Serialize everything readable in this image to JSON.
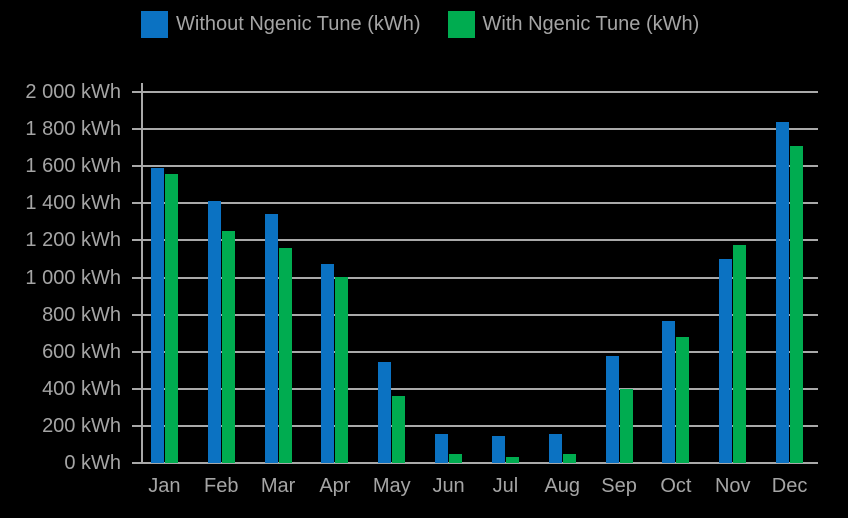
{
  "legend": {
    "items": [
      {
        "label": "Without Ngenic Tune (kWh)",
        "swatch": "blue-square"
      },
      {
        "label": "With Ngenic Tune (kWh)",
        "swatch": "green-square"
      }
    ]
  },
  "chart_data": {
    "type": "bar",
    "title": "",
    "categories": [
      "Jan",
      "Feb",
      "Mar",
      "Apr",
      "May",
      "Jun",
      "Jul",
      "Aug",
      "Sep",
      "Oct",
      "Nov",
      "Dec"
    ],
    "series": [
      {
        "name": "Without Ngenic Tune (kWh)",
        "color": "#0b72c2",
        "values": [
          1590,
          1410,
          1345,
          1075,
          545,
          155,
          145,
          155,
          575,
          765,
          1100,
          1840
        ]
      },
      {
        "name": "With Ngenic Tune (kWh)",
        "color": "#00ac50",
        "values": [
          1560,
          1250,
          1160,
          1000,
          360,
          50,
          30,
          50,
          400,
          680,
          1175,
          1710
        ]
      }
    ],
    "xlabel": "",
    "ylabel": "",
    "ylim": [
      0,
      2000
    ],
    "ytick_step": 200,
    "ytick_labels": [
      "0 kWh",
      "200 kWh",
      "400 kWh",
      "600 kWh",
      "800 kWh",
      "1 000 kWh",
      "1 200 kWh",
      "1 400 kWh",
      "1 600 kWh",
      "1 800 kWh",
      "2 000 kWh"
    ],
    "grid": true,
    "legend_position": "top",
    "colors": {
      "background": "#000000",
      "text": "#a5a5a5",
      "gridline": "#a9a9a9"
    }
  }
}
